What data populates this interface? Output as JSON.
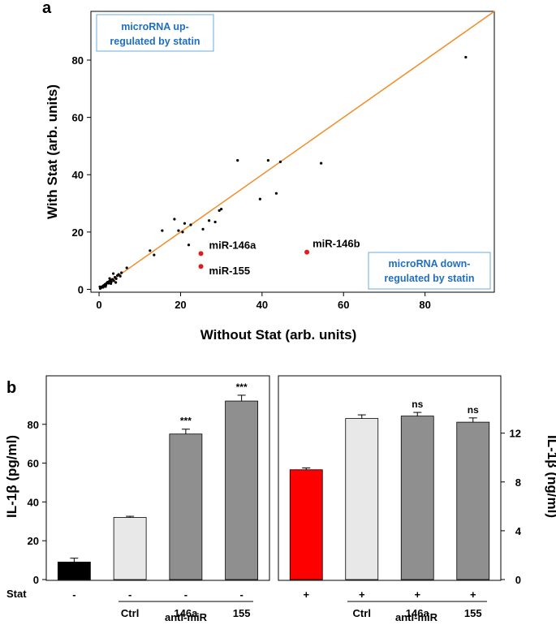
{
  "panel_labels": {
    "a": "a",
    "b": "b"
  },
  "chart_data": [
    {
      "type": "scatter",
      "panel": "a",
      "xlabel": "Without  Stat (arb. units)",
      "ylabel": "With  Stat (arb. units)",
      "xlim": [
        -2,
        97
      ],
      "ylim": [
        -1,
        97
      ],
      "xticks": [
        0,
        20,
        40,
        60,
        80
      ],
      "yticks": [
        0,
        20,
        40,
        60,
        80
      ],
      "identity_line": {
        "from": [
          0,
          0
        ],
        "to": [
          97,
          97
        ],
        "color": "#f28c28"
      },
      "annotations": {
        "upregulated": "microRNA up-\nregulated by statin",
        "downregulated": "microRNA down-\nregulated by statin",
        "box_color": "#6aaee0",
        "text_color": "#1f6fc0"
      },
      "points": [
        [
          0.3,
          0.3
        ],
        [
          0.5,
          0.6
        ],
        [
          0.7,
          0.9
        ],
        [
          0.9,
          1.1
        ],
        [
          1.1,
          1.3
        ],
        [
          1.3,
          1.5
        ],
        [
          1.5,
          1.8
        ],
        [
          1.7,
          1.6
        ],
        [
          1.9,
          2.2
        ],
        [
          2.1,
          2.5
        ],
        [
          2.3,
          2.1
        ],
        [
          2.5,
          2.8
        ],
        [
          2.8,
          3.2
        ],
        [
          3.0,
          2.6
        ],
        [
          3.3,
          3.5
        ],
        [
          3.6,
          3.0
        ],
        [
          3.9,
          4.2
        ],
        [
          4.2,
          3.7
        ],
        [
          4.5,
          4.8
        ],
        [
          4.8,
          5.2
        ],
        [
          5.2,
          4.6
        ],
        [
          3.5,
          5.5
        ],
        [
          4.1,
          2.4
        ],
        [
          2.6,
          3.8
        ],
        [
          6.8,
          7.5
        ],
        [
          1.0,
          0.7
        ],
        [
          0.2,
          0.9
        ],
        [
          1.6,
          1.0
        ],
        [
          2.9,
          2.0
        ],
        [
          5.5,
          5.8
        ],
        [
          12.5,
          13.5
        ],
        [
          13.5,
          12
        ],
        [
          15.5,
          20.5
        ],
        [
          18.5,
          24.5
        ],
        [
          19.5,
          20.5
        ],
        [
          20.5,
          20
        ],
        [
          21,
          23
        ],
        [
          22.5,
          22.5
        ],
        [
          22,
          15.5
        ],
        [
          25.5,
          21
        ],
        [
          27,
          24
        ],
        [
          28.5,
          23.5
        ],
        [
          29.5,
          27.5
        ],
        [
          30,
          28
        ],
        [
          34,
          45
        ],
        [
          39.5,
          31.5
        ],
        [
          41.5,
          45
        ],
        [
          43.5,
          33.5
        ],
        [
          44.5,
          44.5
        ],
        [
          54.5,
          44
        ],
        [
          90,
          81
        ]
      ],
      "highlighted": [
        {
          "label": "miR-146a",
          "x": 25,
          "y": 12.5,
          "color": "#e31b1b"
        },
        {
          "label": "miR-155",
          "x": 25,
          "y": 8,
          "color": "#e31b1b"
        },
        {
          "label": "miR-146b",
          "x": 51,
          "y": 13,
          "color": "#e31b1b"
        }
      ]
    },
    {
      "type": "bar",
      "panel": "b-left",
      "ylabel": "IL-1β (pg/ml)",
      "ylim": [
        0,
        105
      ],
      "yticks": [
        0,
        20,
        40,
        60,
        80
      ],
      "categories": [
        "-",
        "Ctrl",
        "146a",
        "155"
      ],
      "stat": [
        "-",
        "-",
        "-",
        "-"
      ],
      "values": [
        9,
        32,
        75,
        92
      ],
      "errors": [
        2,
        0.6,
        2.5,
        3
      ],
      "colors": [
        "#000000",
        "#e8e8e8",
        "#8f8f8f",
        "#8f8f8f"
      ],
      "significance": [
        "",
        "",
        "***",
        "***"
      ],
      "group_label": "anti-miR"
    },
    {
      "type": "bar",
      "panel": "b-right",
      "ylabel": "IL-1β (ng/ml)",
      "ylim": [
        0,
        16.7
      ],
      "yticks": [
        0,
        4,
        8,
        12
      ],
      "categories": [
        "",
        "Ctrl",
        "146a",
        "155"
      ],
      "stat": [
        "+",
        "+",
        "+",
        "+"
      ],
      "values": [
        9,
        13.2,
        13.4,
        12.9
      ],
      "errors": [
        0.15,
        0.3,
        0.3,
        0.35
      ],
      "colors": [
        "#ff0000",
        "#e8e8e8",
        "#8f8f8f",
        "#8f8f8f"
      ],
      "significance": [
        "",
        "",
        "ns",
        "ns"
      ],
      "group_label": "anti-miR"
    }
  ],
  "stat_row_label": "Stat"
}
